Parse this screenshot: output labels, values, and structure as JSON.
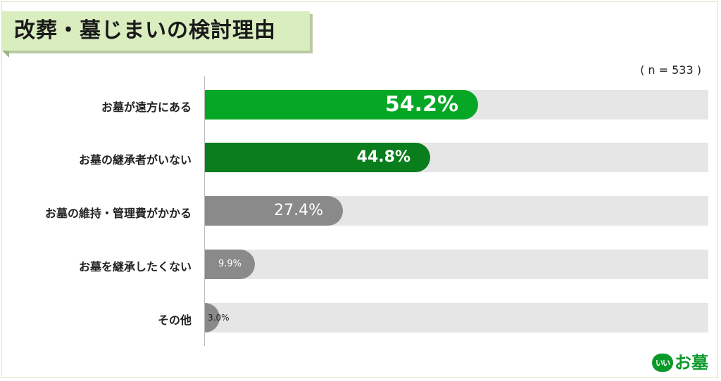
{
  "title": "改葬・墓じまいの検討理由",
  "sample_note": "( n = 533 )",
  "logo": {
    "badge": "いい",
    "text": "お墓"
  },
  "colors": {
    "bar_top": "#06a725",
    "bar_second": "#0a7d1c",
    "bar_other": "#8a8a8a",
    "track": "#e6e6e6",
    "title_bg": "#d9edbf"
  },
  "chart_data": {
    "type": "bar",
    "orientation": "horizontal",
    "categories": [
      "お墓が遠方にある",
      "お墓の継承者がいない",
      "お墓の維持・管理費がかかる",
      "お墓を継承したくない",
      "その他"
    ],
    "values": [
      54.2,
      44.8,
      27.4,
      9.9,
      3.0
    ],
    "value_labels": [
      "54.2%",
      "44.8%",
      "27.4%",
      "9.9%",
      "3.0%"
    ],
    "unit": "%",
    "xlim": [
      0,
      100
    ],
    "grid": false,
    "legend": "none"
  }
}
